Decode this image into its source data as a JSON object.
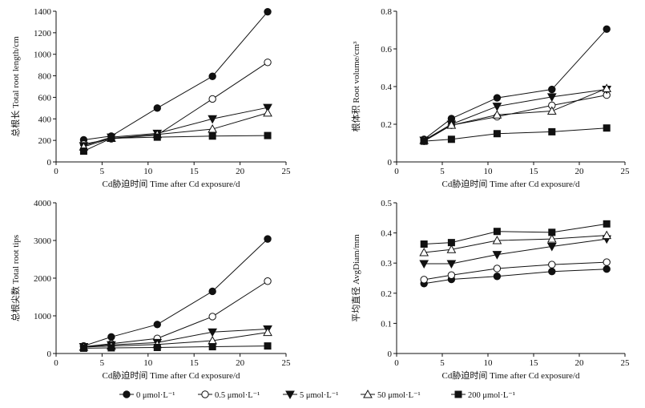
{
  "series_styles": [
    {
      "marker": "circle-filled",
      "color": "#111111"
    },
    {
      "marker": "circle-open",
      "color": "#111111"
    },
    {
      "marker": "triangle-down-filled",
      "color": "#111111"
    },
    {
      "marker": "triangle-up-open",
      "color": "#111111"
    },
    {
      "marker": "square-filled",
      "color": "#111111"
    }
  ],
  "legend": {
    "placement": "bottom",
    "entries": [
      "0 μmol·L⁻¹",
      "0.5 μmol·L⁻¹",
      "5 μmol·L⁻¹",
      "50 μmol·L⁻¹",
      "200 μmol·L⁻¹"
    ]
  },
  "chart_data": [
    {
      "type": "line",
      "ylabel": "总根长 Total root length/cm",
      "xlabel": "Cd胁迫时间 Time after Cd exposure/d",
      "x": [
        3,
        6,
        11,
        17,
        23
      ],
      "xlim": [
        0,
        25
      ],
      "xticks": [
        0,
        5,
        10,
        15,
        20,
        25
      ],
      "ylim": [
        0,
        1400
      ],
      "yticks": [
        0,
        200,
        400,
        600,
        800,
        1000,
        1200,
        1400
      ],
      "ytick_labels": [
        "0",
        "200",
        "400",
        "600",
        "800",
        "1000",
        "1200",
        "1400"
      ],
      "series": [
        {
          "name": "0 μmol·L⁻¹",
          "values": [
            205,
            240,
            500,
            795,
            1395
          ]
        },
        {
          "name": "0.5 μmol·L⁻¹",
          "values": [
            165,
            215,
            250,
            585,
            925
          ]
        },
        {
          "name": "5 μmol·L⁻¹",
          "values": [
            150,
            230,
            265,
            400,
            505
          ]
        },
        {
          "name": "50 μmol·L⁻¹",
          "values": [
            140,
            220,
            255,
            305,
            455
          ]
        },
        {
          "name": "200 μmol·L⁻¹",
          "values": [
            100,
            220,
            230,
            240,
            245
          ]
        }
      ]
    },
    {
      "type": "line",
      "ylabel": "根体积 Root volume/cm³",
      "xlabel": "Cd胁迫时间 Time after Cd exposure/d",
      "x": [
        3,
        6,
        11,
        17,
        23
      ],
      "xlim": [
        0,
        25
      ],
      "xticks": [
        0,
        5,
        10,
        15,
        20,
        25
      ],
      "ylim": [
        0,
        0.8
      ],
      "yticks": [
        0,
        0.2,
        0.4,
        0.6,
        0.8
      ],
      "ytick_labels": [
        "0",
        "0.2",
        "0.4",
        "0.6",
        "0.8"
      ],
      "series": [
        {
          "name": "0 μmol·L⁻¹",
          "values": [
            0.12,
            0.23,
            0.34,
            0.385,
            0.705
          ]
        },
        {
          "name": "0.5 μmol·L⁻¹",
          "values": [
            0.11,
            0.195,
            0.24,
            0.3,
            0.355
          ]
        },
        {
          "name": "5 μmol·L⁻¹",
          "values": [
            0.115,
            0.2,
            0.295,
            0.345,
            0.385
          ]
        },
        {
          "name": "50 μmol·L⁻¹",
          "values": [
            0.115,
            0.195,
            0.25,
            0.27,
            0.39
          ]
        },
        {
          "name": "200 μmol·L⁻¹",
          "values": [
            0.11,
            0.12,
            0.15,
            0.16,
            0.18
          ]
        }
      ]
    },
    {
      "type": "line",
      "ylabel": "总根尖数 Total root tips",
      "xlabel": "Cd胁迫时间 Time after Cd exposure/d",
      "x": [
        3,
        6,
        11,
        17,
        23
      ],
      "xlim": [
        0,
        25
      ],
      "xticks": [
        0,
        5,
        10,
        15,
        20,
        25
      ],
      "ylim": [
        0,
        4000
      ],
      "yticks": [
        0,
        1000,
        2000,
        3000,
        4000
      ],
      "ytick_labels": [
        "0",
        "1000",
        "2000",
        "3000",
        "4000"
      ],
      "series": [
        {
          "name": "0 μmol·L⁻¹",
          "values": [
            200,
            440,
            770,
            1650,
            3040
          ]
        },
        {
          "name": "0.5 μmol·L⁻¹",
          "values": [
            180,
            260,
            400,
            980,
            1920
          ]
        },
        {
          "name": "5 μmol·L⁻¹",
          "values": [
            180,
            230,
            290,
            570,
            650
          ]
        },
        {
          "name": "50 μmol·L⁻¹",
          "values": [
            170,
            200,
            240,
            340,
            560
          ]
        },
        {
          "name": "200 μmol·L⁻¹",
          "values": [
            140,
            150,
            160,
            180,
            200
          ]
        }
      ]
    },
    {
      "type": "line",
      "ylabel": "平均直径 AvgDiam/mm",
      "xlabel": "Cd胁迫时间 Time after Cd exposure/d",
      "x": [
        3,
        6,
        11,
        17,
        23
      ],
      "xlim": [
        0,
        25
      ],
      "xticks": [
        0,
        5,
        10,
        15,
        20,
        25
      ],
      "ylim": [
        0,
        0.5
      ],
      "yticks": [
        0,
        0.1,
        0.2,
        0.3,
        0.4,
        0.5
      ],
      "ytick_labels": [
        "0",
        "0.1",
        "0.2",
        "0.3",
        "0.4",
        "0.5"
      ],
      "series": [
        {
          "name": "0 μmol·L⁻¹",
          "values": [
            0.232,
            0.246,
            0.256,
            0.272,
            0.28
          ]
        },
        {
          "name": "0.5 μmol·L⁻¹",
          "values": [
            0.245,
            0.26,
            0.282,
            0.295,
            0.303
          ]
        },
        {
          "name": "5 μmol·L⁻¹",
          "values": [
            0.298,
            0.298,
            0.328,
            0.355,
            0.38
          ]
        },
        {
          "name": "50 μmol·L⁻¹",
          "values": [
            0.335,
            0.345,
            0.375,
            0.38,
            0.392
          ]
        },
        {
          "name": "200 μmol·L⁻¹",
          "values": [
            0.363,
            0.368,
            0.405,
            0.402,
            0.43
          ]
        }
      ]
    }
  ]
}
